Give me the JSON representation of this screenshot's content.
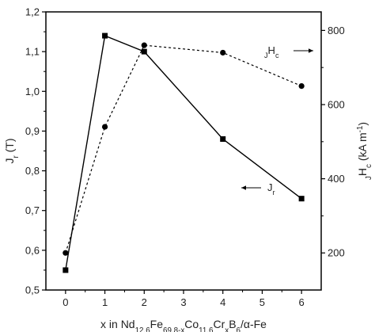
{
  "chart_data": {
    "type": "line",
    "title": "",
    "x": [
      0,
      1,
      2,
      4,
      6
    ],
    "x_ticks": [
      "0",
      "1",
      "2",
      "3",
      "4",
      "5",
      "6"
    ],
    "xlim": [
      -0.5,
      6.5
    ],
    "xlabel": {
      "parts": [
        {
          "t": "x in Nd",
          "s": ""
        },
        {
          "t": "12.6",
          "s": "sub"
        },
        {
          "t": "Fe",
          "s": ""
        },
        {
          "t": "69.8-x",
          "s": "sub"
        },
        {
          "t": "Co",
          "s": ""
        },
        {
          "t": "11.6",
          "s": "sub"
        },
        {
          "t": "Cr",
          "s": ""
        },
        {
          "t": "x",
          "s": "sub"
        },
        {
          "t": "B",
          "s": ""
        },
        {
          "t": "6",
          "s": "sub"
        },
        {
          "t": "/α-Fe",
          "s": ""
        }
      ]
    },
    "y_left": {
      "ticks": [
        "0,5",
        "0,6",
        "0,7",
        "0,8",
        "0,9",
        "1,0",
        "1,1",
        "1,2"
      ],
      "lim": [
        0.5,
        1.2
      ],
      "label": {
        "parts": [
          {
            "t": "J",
            "s": ""
          },
          {
            "t": "r",
            "s": "sub"
          },
          {
            "t": " (T)",
            "s": ""
          }
        ]
      }
    },
    "y_right": {
      "ticks": [
        "200",
        "400",
        "600",
        "800"
      ],
      "lim": [
        100,
        850
      ],
      "label": {
        "parts": [
          {
            "t": "J",
            "s": "sub"
          },
          {
            "t": "H",
            "s": ""
          },
          {
            "t": "c",
            "s": "sub"
          },
          {
            "t": " (kA m",
            "s": ""
          },
          {
            "t": "-1",
            "s": "sup"
          },
          {
            "t": ")",
            "s": ""
          }
        ]
      }
    },
    "series": [
      {
        "id": "jr",
        "axis": "left",
        "style": "solid",
        "marker": "square",
        "color": "#000000",
        "values": [
          0.55,
          1.14,
          1.1,
          0.88,
          0.73
        ]
      },
      {
        "id": "jhc",
        "axis": "right",
        "style": "dotted",
        "marker": "circle",
        "color": "#000000",
        "values": [
          200,
          540,
          760,
          740,
          650
        ]
      }
    ],
    "annotations": [
      {
        "series": "jr",
        "direction": "left",
        "parts": [
          {
            "t": "J",
            "s": ""
          },
          {
            "t": "r",
            "s": "sub"
          }
        ]
      },
      {
        "series": "jhc",
        "direction": "right",
        "parts": [
          {
            "t": "J",
            "s": "sub"
          },
          {
            "t": "H",
            "s": ""
          },
          {
            "t": "c",
            "s": "sub"
          }
        ]
      }
    ],
    "grid": false,
    "legend": "none"
  }
}
